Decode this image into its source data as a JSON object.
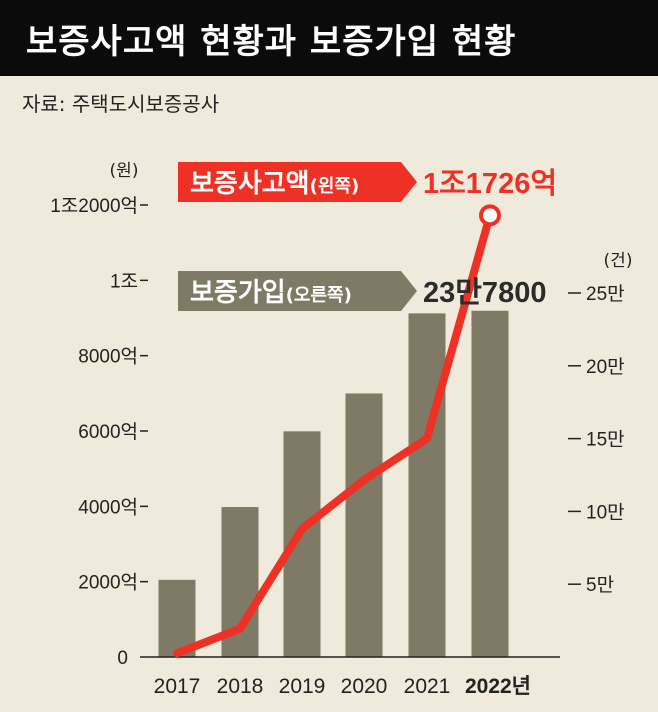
{
  "header": {
    "title": "보증사고액 현황과 보증가입 현황",
    "source": "자료: 주택도시보증공사"
  },
  "colors": {
    "background": "#efeadc",
    "bar": "#7e7a66",
    "line": "#ee3124",
    "title_bg": "#0b0b0b"
  },
  "chart_data": {
    "type": "bar+line",
    "title": "보증사고액 현황과 보증가입 현황",
    "categories": [
      "2017",
      "2018",
      "2019",
      "2020",
      "2021",
      "2022년"
    ],
    "left_axis": {
      "unit": "(원)",
      "ticks": [
        "0",
        "2000억",
        "4000억",
        "6000억",
        "8000억",
        "1조",
        "1조2000억"
      ],
      "tick_values": [
        0,
        2000,
        4000,
        6000,
        8000,
        10000,
        12000
      ],
      "range": [
        0,
        12000
      ]
    },
    "right_axis": {
      "unit": "(건)",
      "ticks": [
        "5만",
        "10만",
        "15만",
        "20만",
        "25만"
      ],
      "tick_values": [
        50000,
        100000,
        150000,
        200000,
        250000
      ],
      "range": [
        0,
        260000
      ]
    },
    "series": [
      {
        "name": "보증가입",
        "name_suffix": "(오른쪽)",
        "type": "bar",
        "axis": "right",
        "values": [
          53000,
          103000,
          155000,
          181000,
          236000,
          237800
        ],
        "annotation": "23만7800"
      },
      {
        "name": "보증사고액",
        "name_suffix": "(왼쪽)",
        "type": "line",
        "axis": "left",
        "values": [
          100,
          750,
          3400,
          4700,
          5800,
          11726
        ],
        "annotation": "1조1726억"
      }
    ]
  }
}
